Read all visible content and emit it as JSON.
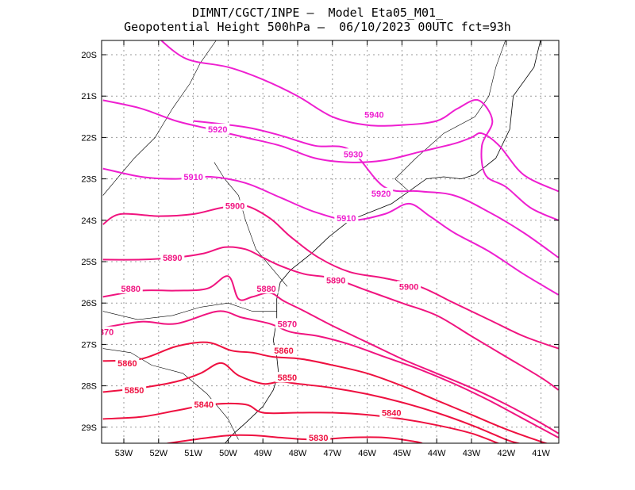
{
  "header": {
    "line1": "DIMNT/CGCT/INPE —  Model Eta05_M01_",
    "line2": "Geopotential Height 500hPa —  06/10/2023 00UTC fct=93h"
  },
  "axes": {
    "lat_labels": [
      "20S",
      "21S",
      "22S",
      "23S",
      "24S",
      "25S",
      "26S",
      "27S",
      "28S",
      "29S"
    ],
    "lon_labels": [
      "53W",
      "52W",
      "51W",
      "50W",
      "49W",
      "48W",
      "47W",
      "46W",
      "45W",
      "44W",
      "43W",
      "42W",
      "41W"
    ],
    "lat_range": [
      -29.4,
      -19.6
    ],
    "lon_range": [
      -53.6,
      -40.5
    ]
  },
  "colors": {
    "high": "#ee1fd0",
    "mid": "#f0147f",
    "low": "#ee1040",
    "coast": "#000000",
    "grid": "#9a9a9a"
  },
  "map_data": {
    "contours": [
      {
        "level": 5940,
        "labels": [
          "5940"
        ],
        "points": [
          [
            -52,
            -19.6
          ],
          [
            -51.2,
            -20.1
          ],
          [
            -50,
            -20.3
          ],
          [
            -49,
            -20.6
          ],
          [
            -48,
            -21.0
          ],
          [
            -47,
            -21.5
          ],
          [
            -46,
            -21.7
          ],
          [
            -45,
            -21.7
          ],
          [
            -44,
            -21.6
          ],
          [
            -43.4,
            -21.3
          ],
          [
            -42.8,
            -21.1
          ],
          [
            -42.4,
            -21.6
          ],
          [
            -42.7,
            -22.2
          ],
          [
            -42.6,
            -22.9
          ],
          [
            -42,
            -23.2
          ],
          [
            -41.3,
            -23.7
          ],
          [
            -40.5,
            -24.0
          ]
        ]
      },
      {
        "level": 5930,
        "labels": [
          "5930"
        ],
        "points": [
          [
            -53.6,
            -21.1
          ],
          [
            -52.5,
            -21.3
          ],
          [
            -51.5,
            -21.6
          ],
          [
            -50.5,
            -21.8
          ],
          [
            -49.5,
            -22.0
          ],
          [
            -48.5,
            -22.2
          ],
          [
            -47.5,
            -22.5
          ],
          [
            -46.5,
            -22.6
          ],
          [
            -45.5,
            -22.55
          ],
          [
            -44.5,
            -22.35
          ],
          [
            -43.5,
            -22.15
          ],
          [
            -43.0,
            -22.0
          ],
          [
            -42.7,
            -21.9
          ],
          [
            -42.2,
            -22.2
          ],
          [
            -41.5,
            -22.9
          ],
          [
            -40.5,
            -23.3
          ]
        ]
      },
      {
        "level": 5920,
        "labels": [
          "5920"
        ],
        "points": [
          [
            -51,
            -21.6
          ],
          [
            -49.5,
            -21.75
          ],
          [
            -48.5,
            -21.95
          ],
          [
            -47.5,
            -22.2
          ],
          [
            -46.5,
            -22.3
          ],
          [
            -45.5,
            -23.2
          ],
          [
            -44.5,
            -23.3
          ],
          [
            -43.5,
            -23.4
          ],
          [
            -42.5,
            -23.8
          ],
          [
            -41.5,
            -24.3
          ],
          [
            -40.5,
            -24.9
          ]
        ]
      },
      {
        "level": 5910,
        "labels": [
          "5910"
        ],
        "points": [
          [
            -53.6,
            -22.75
          ],
          [
            -52.5,
            -22.95
          ],
          [
            -51.5,
            -23.0
          ],
          [
            -50.5,
            -22.95
          ],
          [
            -49.5,
            -23.1
          ],
          [
            -48.5,
            -23.45
          ],
          [
            -47.5,
            -23.8
          ],
          [
            -46.5,
            -24.0
          ],
          [
            -45.5,
            -23.85
          ],
          [
            -44.8,
            -23.6
          ],
          [
            -44.2,
            -23.9
          ],
          [
            -43.5,
            -24.3
          ],
          [
            -42.5,
            -24.75
          ],
          [
            -41.5,
            -25.3
          ],
          [
            -40.5,
            -25.8
          ]
        ]
      },
      {
        "level": 5900,
        "labels": [
          "5900"
        ],
        "points": [
          [
            -53.6,
            -24.1
          ],
          [
            -53.1,
            -23.85
          ],
          [
            -52,
            -23.9
          ],
          [
            -51,
            -23.85
          ],
          [
            -50.2,
            -23.7
          ],
          [
            -49.5,
            -23.65
          ],
          [
            -48.8,
            -23.95
          ],
          [
            -48.2,
            -24.4
          ],
          [
            -47.4,
            -24.9
          ],
          [
            -46.5,
            -25.25
          ],
          [
            -45.5,
            -25.4
          ],
          [
            -44.5,
            -25.6
          ],
          [
            -43.5,
            -26.0
          ],
          [
            -42.5,
            -26.4
          ],
          [
            -41.5,
            -26.8
          ],
          [
            -40.5,
            -27.1
          ]
        ]
      },
      {
        "level": 5890,
        "labels": [
          "5890"
        ],
        "points": [
          [
            -53.6,
            -24.95
          ],
          [
            -52.5,
            -24.95
          ],
          [
            -51.5,
            -24.9
          ],
          [
            -50.7,
            -24.8
          ],
          [
            -50.1,
            -24.65
          ],
          [
            -49.5,
            -24.7
          ],
          [
            -49.0,
            -24.9
          ],
          [
            -48.5,
            -25.1
          ],
          [
            -47.8,
            -25.3
          ],
          [
            -47.0,
            -25.4
          ],
          [
            -46,
            -25.7
          ],
          [
            -45,
            -26.0
          ],
          [
            -44,
            -26.3
          ],
          [
            -43,
            -26.8
          ],
          [
            -42,
            -27.3
          ],
          [
            -41,
            -27.8
          ],
          [
            -40.5,
            -28.1
          ]
        ]
      },
      {
        "level": 5880,
        "labels": [
          "5880"
        ],
        "points": [
          [
            -53.6,
            -25.85
          ],
          [
            -52.5,
            -25.7
          ],
          [
            -51.5,
            -25.7
          ],
          [
            -50.6,
            -25.65
          ],
          [
            -50.0,
            -25.35
          ],
          [
            -49.7,
            -25.9
          ],
          [
            -49.3,
            -25.85
          ],
          [
            -48.8,
            -25.75
          ],
          [
            -48.4,
            -25.95
          ],
          [
            -47.8,
            -26.2
          ],
          [
            -47,
            -26.55
          ],
          [
            -46,
            -26.95
          ],
          [
            -45,
            -27.35
          ],
          [
            -44,
            -27.7
          ],
          [
            -43,
            -28.05
          ],
          [
            -42,
            -28.45
          ],
          [
            -41,
            -28.9
          ],
          [
            -40.5,
            -29.15
          ]
        ]
      },
      {
        "level": 5870,
        "labels": [
          "5870"
        ],
        "points": [
          [
            -53.6,
            -26.6
          ],
          [
            -52.5,
            -26.45
          ],
          [
            -51.5,
            -26.5
          ],
          [
            -50.3,
            -26.2
          ],
          [
            -49.6,
            -26.35
          ],
          [
            -48.8,
            -26.5
          ],
          [
            -48.2,
            -26.7
          ],
          [
            -47.4,
            -26.8
          ],
          [
            -46.5,
            -27.0
          ],
          [
            -45.5,
            -27.3
          ],
          [
            -44.5,
            -27.6
          ],
          [
            -43.5,
            -27.95
          ],
          [
            -42.5,
            -28.35
          ],
          [
            -41.5,
            -28.8
          ],
          [
            -40.5,
            -29.25
          ]
        ]
      },
      {
        "level": 5860,
        "labels": [
          "5860"
        ],
        "points": [
          [
            -53.6,
            -27.4
          ],
          [
            -52.5,
            -27.35
          ],
          [
            -51.5,
            -27.05
          ],
          [
            -50.6,
            -26.95
          ],
          [
            -49.9,
            -27.15
          ],
          [
            -49.3,
            -27.2
          ],
          [
            -48.7,
            -27.3
          ],
          [
            -47.9,
            -27.35
          ],
          [
            -47,
            -27.5
          ],
          [
            -46,
            -27.7
          ],
          [
            -45,
            -28.0
          ],
          [
            -44,
            -28.35
          ],
          [
            -43,
            -28.7
          ],
          [
            -42,
            -29.05
          ],
          [
            -41,
            -29.35
          ],
          [
            -40.8,
            -29.4
          ]
        ]
      },
      {
        "level": 5850,
        "labels": [
          "5850"
        ],
        "points": [
          [
            -53.6,
            -28.15
          ],
          [
            -52.5,
            -28.05
          ],
          [
            -51.5,
            -27.9
          ],
          [
            -50.8,
            -27.7
          ],
          [
            -50.2,
            -27.45
          ],
          [
            -49.7,
            -27.75
          ],
          [
            -49.0,
            -27.95
          ],
          [
            -48.5,
            -27.9
          ],
          [
            -48,
            -27.95
          ],
          [
            -47,
            -28.05
          ],
          [
            -46,
            -28.2
          ],
          [
            -45,
            -28.4
          ],
          [
            -44,
            -28.65
          ],
          [
            -43,
            -28.95
          ],
          [
            -42,
            -29.3
          ],
          [
            -41.6,
            -29.4
          ]
        ]
      },
      {
        "level": 5840,
        "labels": [
          "5840"
        ],
        "points": [
          [
            -53.6,
            -28.8
          ],
          [
            -52.5,
            -28.75
          ],
          [
            -51.5,
            -28.6
          ],
          [
            -50.5,
            -28.45
          ],
          [
            -49.5,
            -28.45
          ],
          [
            -49.0,
            -28.65
          ],
          [
            -48,
            -28.65
          ],
          [
            -47,
            -28.65
          ],
          [
            -46,
            -28.7
          ],
          [
            -45,
            -28.8
          ],
          [
            -44,
            -28.95
          ],
          [
            -43,
            -29.15
          ],
          [
            -42.2,
            -29.4
          ]
        ]
      },
      {
        "level": 5830,
        "labels": [
          "5830"
        ],
        "points": [
          [
            -51.8,
            -29.4
          ],
          [
            -51,
            -29.3
          ],
          [
            -50,
            -29.2
          ],
          [
            -49.2,
            -29.2
          ],
          [
            -48.5,
            -29.25
          ],
          [
            -47.5,
            -29.3
          ],
          [
            -46.5,
            -29.25
          ],
          [
            -45.5,
            -29.25
          ],
          [
            -44.6,
            -29.35
          ],
          [
            -44.4,
            -29.4
          ]
        ]
      }
    ],
    "label_positions": [
      {
        "level": 5940,
        "text": "5940",
        "lon": -45.8,
        "lat": -21.45
      },
      {
        "level": 5930,
        "text": "5930",
        "lon": -46.4,
        "lat": -22.4
      },
      {
        "level": 5920,
        "text": "5920",
        "lon": -50.3,
        "lat": -21.8
      },
      {
        "level": 5920,
        "text": "5920",
        "lon": -45.6,
        "lat": -23.35
      },
      {
        "level": 5910,
        "text": "5910",
        "lon": -51.0,
        "lat": -22.95
      },
      {
        "level": 5910,
        "text": "5910",
        "lon": -46.6,
        "lat": -23.95
      },
      {
        "level": 5900,
        "text": "5900",
        "lon": -49.8,
        "lat": -23.65
      },
      {
        "level": 5900,
        "text": "5900",
        "lon": -44.8,
        "lat": -25.6
      },
      {
        "level": 5890,
        "text": "5890",
        "lon": -51.6,
        "lat": -24.9
      },
      {
        "level": 5890,
        "text": "5890",
        "lon": -46.9,
        "lat": -25.45
      },
      {
        "level": 5880,
        "text": "5880",
        "lon": -52.8,
        "lat": -25.65
      },
      {
        "level": 5880,
        "text": "5880",
        "lon": -48.9,
        "lat": -25.65
      },
      {
        "level": 5870,
        "text": "5870",
        "lon": -48.3,
        "lat": -26.5
      },
      {
        "level": 5870,
        "text": "870",
        "lon": -53.5,
        "lat": -26.7
      },
      {
        "level": 5860,
        "text": "5860",
        "lon": -48.4,
        "lat": -27.15
      },
      {
        "level": 5860,
        "text": "5860",
        "lon": -52.9,
        "lat": -27.45
      },
      {
        "level": 5850,
        "text": "5850",
        "lon": -48.3,
        "lat": -27.8
      },
      {
        "level": 5850,
        "text": "5850",
        "lon": -52.7,
        "lat": -28.1
      },
      {
        "level": 5840,
        "text": "5840",
        "lon": -50.7,
        "lat": -28.45
      },
      {
        "level": 5840,
        "text": "5840",
        "lon": -45.3,
        "lat": -28.65
      },
      {
        "level": 5830,
        "text": "5830",
        "lon": -47.4,
        "lat": -29.25
      }
    ],
    "coastline": [
      [
        -41.0,
        -19.6
      ],
      [
        -41.2,
        -20.3
      ],
      [
        -41.8,
        -21.0
      ],
      [
        -41.9,
        -21.8
      ],
      [
        -42.3,
        -22.5
      ],
      [
        -42.9,
        -22.9
      ],
      [
        -43.3,
        -23.0
      ],
      [
        -43.8,
        -22.95
      ],
      [
        -44.3,
        -23.0
      ],
      [
        -44.8,
        -23.3
      ],
      [
        -45.3,
        -23.6
      ],
      [
        -45.9,
        -23.8
      ],
      [
        -46.5,
        -24.0
      ],
      [
        -47.1,
        -24.4
      ],
      [
        -47.6,
        -24.8
      ],
      [
        -48.2,
        -25.2
      ],
      [
        -48.5,
        -25.5
      ],
      [
        -48.6,
        -25.9
      ],
      [
        -48.6,
        -26.4
      ],
      [
        -48.7,
        -26.9
      ],
      [
        -48.6,
        -27.3
      ],
      [
        -48.55,
        -27.7
      ],
      [
        -48.7,
        -28.1
      ],
      [
        -49.0,
        -28.5
      ],
      [
        -49.5,
        -28.9
      ],
      [
        -49.9,
        -29.2
      ],
      [
        -50.1,
        -29.4
      ]
    ],
    "borders": [
      [
        [
          -50.3,
          -19.6
        ],
        [
          -50.8,
          -20.2
        ],
        [
          -51.1,
          -20.7
        ],
        [
          -51.6,
          -21.3
        ],
        [
          -52.1,
          -22.0
        ],
        [
          -52.7,
          -22.5
        ],
        [
          -53.2,
          -23.0
        ],
        [
          -53.6,
          -23.4
        ]
      ],
      [
        [
          -50.4,
          -22.6
        ],
        [
          -50.1,
          -23.0
        ],
        [
          -49.7,
          -23.4
        ],
        [
          -49.5,
          -24.0
        ],
        [
          -49.2,
          -24.7
        ],
        [
          -48.7,
          -25.2
        ],
        [
          -48.3,
          -25.6
        ]
      ],
      [
        [
          -53.6,
          -26.2
        ],
        [
          -52.6,
          -26.4
        ],
        [
          -51.6,
          -26.3
        ],
        [
          -50.8,
          -26.1
        ],
        [
          -50.0,
          -26.0
        ],
        [
          -49.3,
          -26.2
        ],
        [
          -48.6,
          -26.2
        ]
      ],
      [
        [
          -53.6,
          -27.1
        ],
        [
          -52.8,
          -27.2
        ],
        [
          -52.2,
          -27.5
        ],
        [
          -51.3,
          -27.7
        ],
        [
          -50.6,
          -28.2
        ],
        [
          -50.0,
          -28.8
        ],
        [
          -49.7,
          -29.3
        ]
      ],
      [
        [
          -42.0,
          -19.6
        ],
        [
          -42.3,
          -20.3
        ],
        [
          -42.5,
          -21.0
        ],
        [
          -42.9,
          -21.5
        ],
        [
          -43.8,
          -21.9
        ],
        [
          -44.6,
          -22.5
        ],
        [
          -45.2,
          -23.0
        ],
        [
          -44.8,
          -23.3
        ]
      ]
    ]
  }
}
